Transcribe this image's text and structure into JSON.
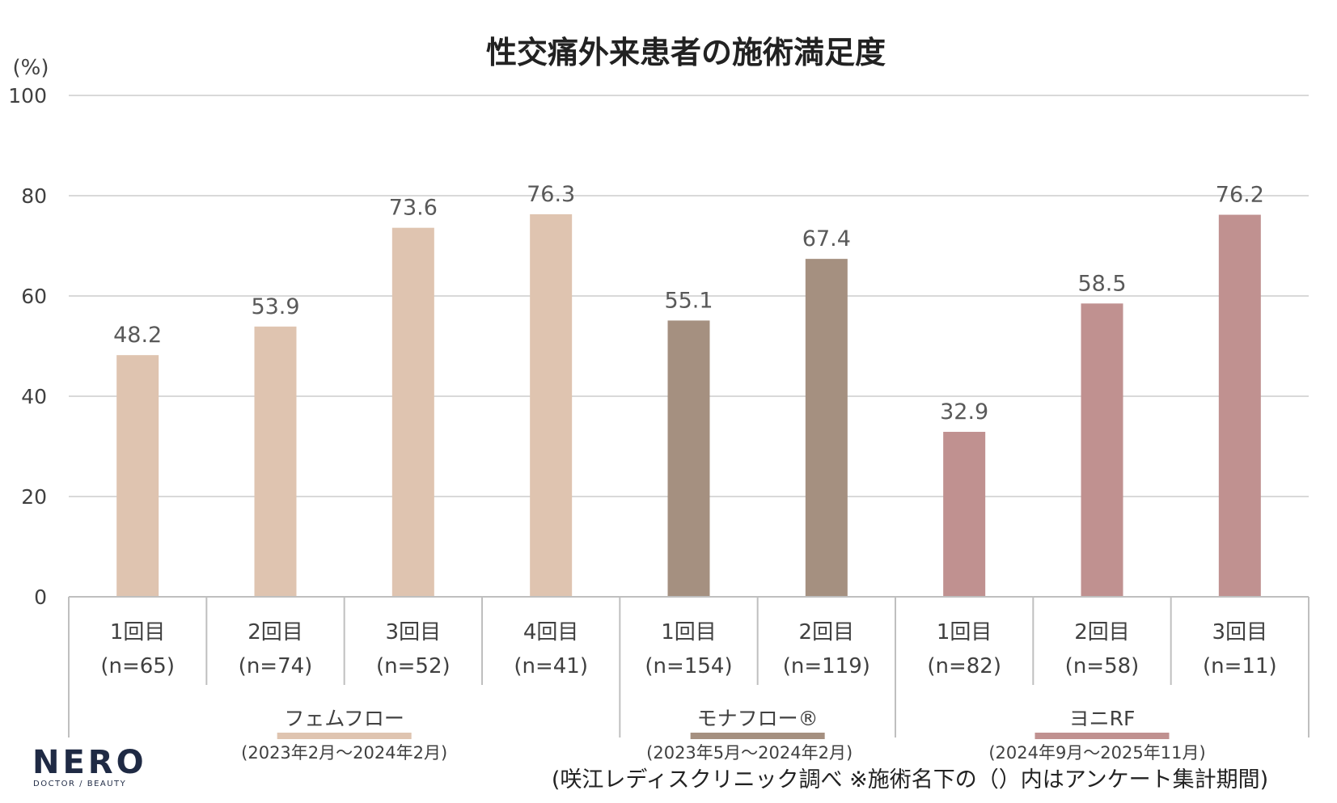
{
  "chart_data": {
    "type": "bar",
    "title": "性交痛外来患者の施術満足度",
    "ylabel": "(%)",
    "ylim": [
      0,
      100
    ],
    "yticks": [
      "0",
      "20",
      "40",
      "60",
      "80",
      "100"
    ],
    "grid": true,
    "categories": [
      {
        "label": "1回目",
        "n": "(n=65)",
        "value": 48.2,
        "group": 0
      },
      {
        "label": "2回目",
        "n": "(n=74)",
        "value": 53.9,
        "group": 0
      },
      {
        "label": "3回目",
        "n": "(n=52)",
        "value": 73.6,
        "group": 0
      },
      {
        "label": "4回目",
        "n": "(n=41)",
        "value": 76.3,
        "group": 0
      },
      {
        "label": "1回目",
        "n": "(n=154)",
        "value": 55.1,
        "group": 1
      },
      {
        "label": "2回目",
        "n": "(n=119)",
        "value": 67.4,
        "group": 1
      },
      {
        "label": "1回目",
        "n": "(n=82)",
        "value": 32.9,
        "group": 2
      },
      {
        "label": "2回目",
        "n": "(n=58)",
        "value": 58.5,
        "group": 2
      },
      {
        "label": "3回目",
        "n": "(n=11)",
        "value": 76.2,
        "group": 2
      }
    ],
    "groups": [
      {
        "name": "フェムフロー",
        "period": "(2023年2月～2024年2月)",
        "color": "#dfc4b0"
      },
      {
        "name": "モナフロー®",
        "period": "(2023年5月～2024年2月)",
        "color": "#a59080"
      },
      {
        "name": "ヨニRF",
        "period": "(2024年9月～2025年11月)",
        "color": "#c09190"
      }
    ]
  },
  "footnote": "(咲江レディスクリニック調べ ※施術名下の（）内はアンケート集計期間)",
  "logo": {
    "main": "NERO",
    "sub": "DOCTOR / BEAUTY"
  }
}
